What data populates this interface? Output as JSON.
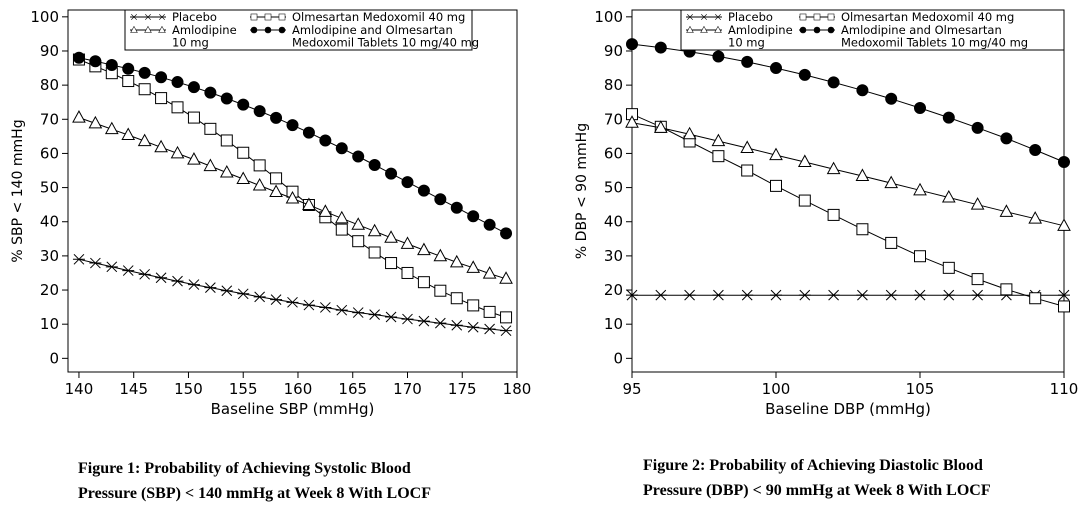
{
  "chart_data": [
    {
      "type": "line",
      "id": "fig1",
      "caption_line1": "Figure 1: Probability of Achieving Systolic Blood",
      "caption_line2": "Pressure (SBP) < 140 mmHg at Week 8 With LOCF",
      "xlabel": "Baseline SBP (mmHg)",
      "ylabel": "% SBP < 140 mmHg",
      "xlim": [
        139,
        180
      ],
      "ylim": [
        -4,
        102
      ],
      "xticks": [
        140,
        145,
        150,
        155,
        160,
        165,
        170,
        175,
        180
      ],
      "yticks": [
        0,
        10,
        20,
        30,
        40,
        50,
        60,
        70,
        80,
        90,
        100
      ],
      "x": [
        140,
        141.5,
        143,
        144.5,
        146,
        147.5,
        149,
        150.5,
        152,
        153.5,
        155,
        156.5,
        158,
        159.5,
        161,
        162.5,
        164,
        165.5,
        167,
        168.5,
        170,
        171.5,
        173,
        174.5,
        176,
        177.5,
        179
      ],
      "series": [
        {
          "name": "Placebo",
          "marker": "star",
          "values": [
            29.0,
            27.9,
            26.8,
            25.7,
            24.6,
            23.6,
            22.6,
            21.6,
            20.7,
            19.8,
            18.9,
            18.0,
            17.2,
            16.4,
            15.6,
            14.9,
            14.1,
            13.4,
            12.8,
            12.1,
            11.5,
            10.9,
            10.3,
            9.7,
            9.1,
            8.6,
            8.1
          ]
        },
        {
          "name": "Olmesartan Medoxomil 40 mg",
          "marker": "square",
          "values": [
            87.5,
            85.5,
            83.5,
            81.2,
            78.8,
            76.2,
            73.5,
            70.5,
            67.2,
            63.8,
            60.2,
            56.5,
            52.7,
            48.8,
            44.9,
            41.3,
            37.7,
            34.3,
            31.0,
            27.9,
            25.0,
            22.3,
            19.8,
            17.6,
            15.5,
            13.6,
            12.0
          ]
        },
        {
          "name": "Amlodipine 10 mg",
          "marker": "triangle",
          "values": [
            70.5,
            68.8,
            67.1,
            65.4,
            63.6,
            61.8,
            60.0,
            58.2,
            56.3,
            54.4,
            52.5,
            50.6,
            48.7,
            46.8,
            44.9,
            42.9,
            41.0,
            39.1,
            37.2,
            35.3,
            33.5,
            31.7,
            29.9,
            28.1,
            26.5,
            24.8,
            23.3
          ]
        },
        {
          "name": "Amlodipine and Olmesartan Medoxomil Tablets 10 mg/40 mg",
          "marker": "circle",
          "values": [
            88.0,
            87.0,
            85.9,
            84.8,
            83.6,
            82.3,
            80.9,
            79.4,
            77.8,
            76.1,
            74.3,
            72.4,
            70.4,
            68.3,
            66.1,
            63.8,
            61.5,
            59.1,
            56.6,
            54.1,
            51.6,
            49.1,
            46.6,
            44.1,
            41.6,
            39.1,
            36.6
          ]
        }
      ]
    },
    {
      "type": "line",
      "id": "fig2",
      "caption_line1": "Figure 2: Probability of Achieving Diastolic Blood",
      "caption_line2": "Pressure (DBP) < 90 mmHg at Week 8 With LOCF",
      "xlabel": "Baseline DBP (mmHg)",
      "ylabel": "% DBP < 90 mmHg",
      "xlim": [
        95,
        110
      ],
      "ylim": [
        -4,
        102
      ],
      "xticks": [
        95,
        100,
        105,
        110
      ],
      "yticks": [
        0,
        10,
        20,
        30,
        40,
        50,
        60,
        70,
        80,
        90,
        100
      ],
      "x": [
        95,
        96,
        97,
        98,
        99,
        100,
        101,
        102,
        103,
        104,
        105,
        106,
        107,
        108,
        109,
        110
      ],
      "series": [
        {
          "name": "Placebo",
          "marker": "star",
          "values": [
            18.5,
            18.5,
            18.5,
            18.5,
            18.5,
            18.5,
            18.5,
            18.5,
            18.5,
            18.5,
            18.5,
            18.5,
            18.5,
            18.5,
            18.5,
            18.5
          ]
        },
        {
          "name": "Olmesartan Medoxomil 40 mg",
          "marker": "square",
          "values": [
            71.5,
            67.8,
            63.5,
            59.2,
            55.0,
            50.5,
            46.2,
            42.0,
            37.8,
            33.8,
            29.9,
            26.5,
            23.2,
            20.2,
            17.6,
            15.2
          ]
        },
        {
          "name": "Amlodipine 10 mg",
          "marker": "triangle",
          "values": [
            69.0,
            67.5,
            65.6,
            63.6,
            61.6,
            59.5,
            57.5,
            55.4,
            53.4,
            51.3,
            49.2,
            47.1,
            45.0,
            42.9,
            40.9,
            38.8
          ]
        },
        {
          "name": "Amlodipine and Olmesartan Medoxomil Tablets 10 mg/40 mg",
          "marker": "circle",
          "values": [
            92.0,
            91.0,
            89.8,
            88.4,
            86.8,
            85.0,
            83.0,
            80.8,
            78.5,
            76.0,
            73.3,
            70.5,
            67.5,
            64.4,
            61.0,
            57.5
          ]
        }
      ]
    }
  ],
  "legend": {
    "placebo": "Placebo",
    "olmesartan": "Olmesartan Medoxomil 40 mg",
    "amlodipine_line1": "Amlodipine",
    "amlodipine_line2": "10 mg",
    "combo_line1": "Amlodipine and Olmesartan",
    "combo_line2": "Medoxomil Tablets 10 mg/40 mg"
  }
}
